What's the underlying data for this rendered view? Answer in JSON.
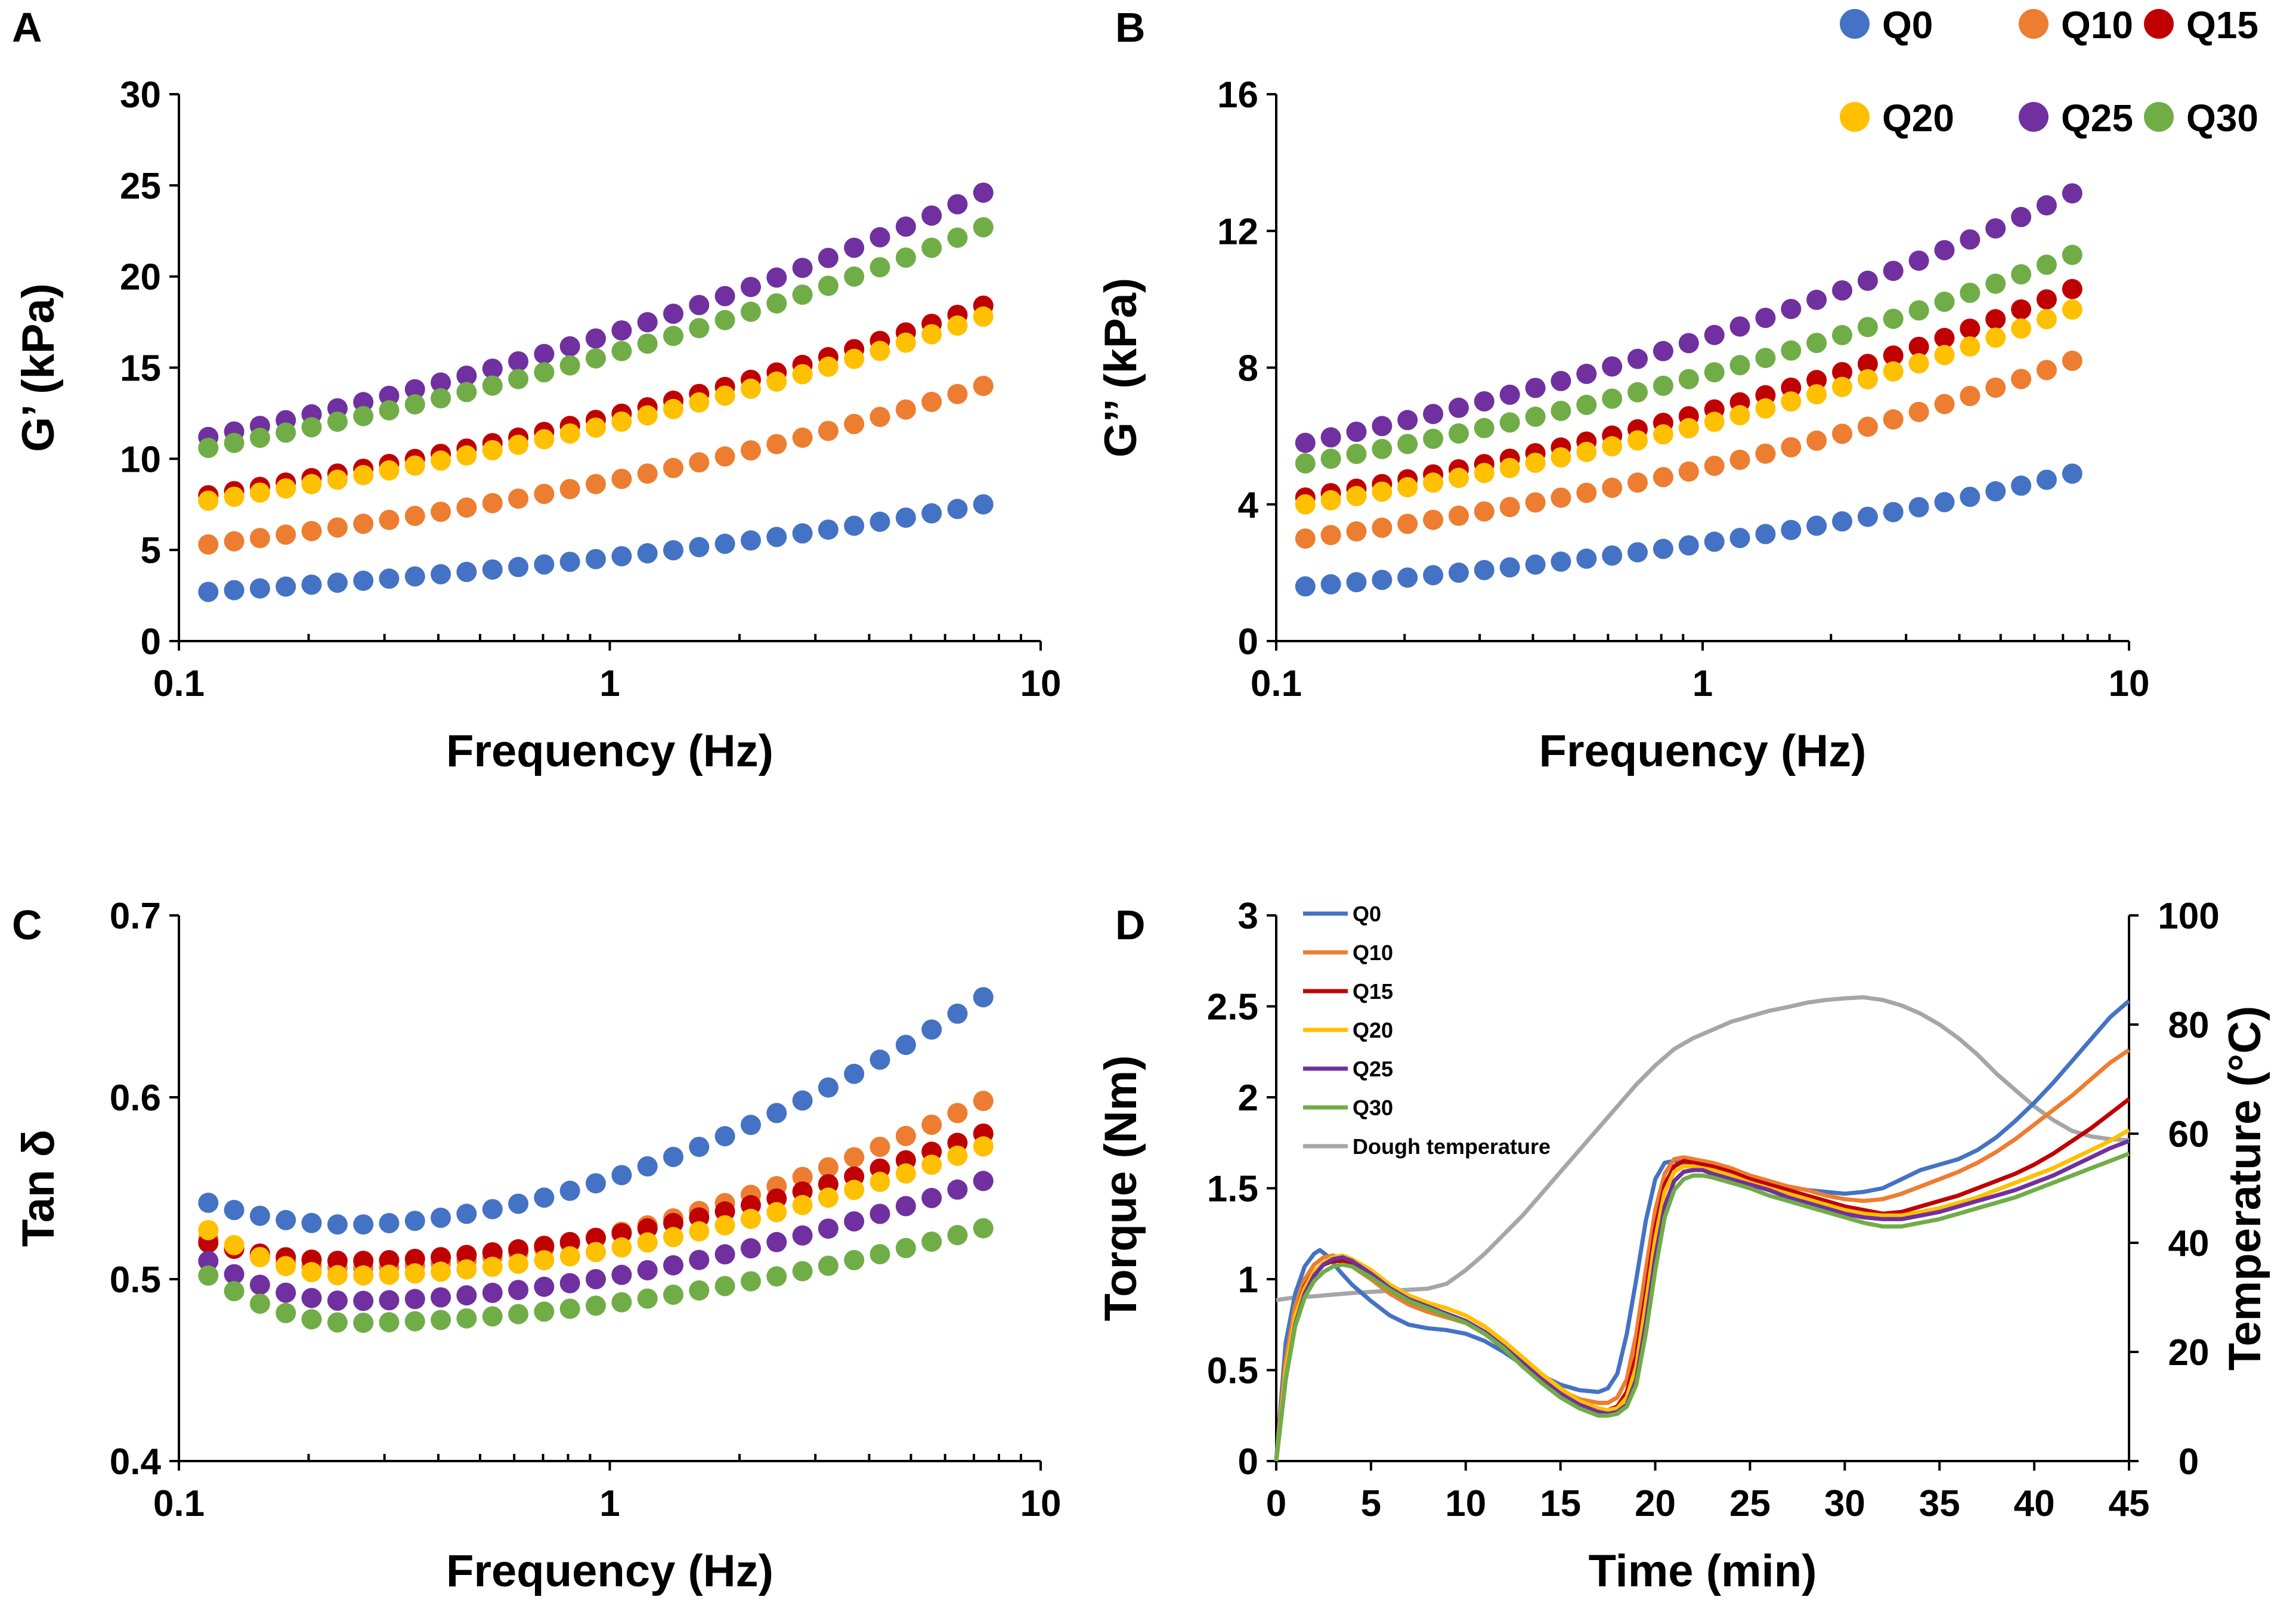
{
  "figure": {
    "top_legend": [
      {
        "name": "Q0",
        "color": "#4472C4"
      },
      {
        "name": "Q10",
        "color": "#ED7D31"
      },
      {
        "name": "Q15",
        "color": "#C00000"
      },
      {
        "name": "Q20",
        "color": "#FFC000"
      },
      {
        "name": "Q25",
        "color": "#7030A0"
      },
      {
        "name": "Q30",
        "color": "#70AD47"
      }
    ]
  },
  "chart_data": [
    {
      "id": "A",
      "panel_label": "A",
      "type": "scatter",
      "xscale": "log",
      "xlim": [
        0.1,
        10
      ],
      "ylim": [
        0,
        30
      ],
      "x_ticks": [
        0.1,
        1,
        10
      ],
      "x_tick_labels": [
        "0.1",
        "1",
        "10"
      ],
      "y_ticks": [
        0,
        5,
        10,
        15,
        20,
        25,
        30
      ],
      "y_tick_labels": [
        "0",
        "5",
        "10",
        "15",
        "20",
        "25",
        "30"
      ],
      "xlabel": "Frequency (Hz)",
      "ylabel": "G’ (kPa)",
      "x_range": [
        0.117,
        7.36
      ],
      "n_points": 31,
      "series": [
        {
          "name": "Q0",
          "color": "#4472C4",
          "start": 2.7,
          "end": 7.5
        },
        {
          "name": "Q10",
          "color": "#ED7D31",
          "start": 5.3,
          "end": 14.0
        },
        {
          "name": "Q15",
          "color": "#C00000",
          "start": 8.0,
          "end": 18.4
        },
        {
          "name": "Q20",
          "color": "#FFC000",
          "start": 7.7,
          "end": 17.8
        },
        {
          "name": "Q25",
          "color": "#7030A0",
          "start": 11.2,
          "end": 24.6
        },
        {
          "name": "Q30",
          "color": "#70AD47",
          "start": 10.6,
          "end": 22.7
        }
      ]
    },
    {
      "id": "B",
      "panel_label": "B",
      "type": "scatter",
      "xscale": "log",
      "xlim": [
        0.1,
        10
      ],
      "ylim": [
        0,
        16
      ],
      "x_ticks": [
        0.1,
        1,
        10
      ],
      "x_tick_labels": [
        "0.1",
        "1",
        "10"
      ],
      "y_ticks": [
        0,
        4,
        8,
        12,
        16
      ],
      "y_tick_labels": [
        "0",
        "4",
        "8",
        "12",
        "16"
      ],
      "xlabel": "Frequency (Hz)",
      "ylabel": "G’’ (kPa)",
      "x_range": [
        0.117,
        7.36
      ],
      "n_points": 31,
      "series": [
        {
          "name": "Q0",
          "color": "#4472C4",
          "start": 1.6,
          "end": 4.9
        },
        {
          "name": "Q10",
          "color": "#ED7D31",
          "start": 3.0,
          "end": 8.2
        },
        {
          "name": "Q15",
          "color": "#C00000",
          "start": 4.2,
          "end": 10.3
        },
        {
          "name": "Q20",
          "color": "#FFC000",
          "start": 4.0,
          "end": 9.7
        },
        {
          "name": "Q25",
          "color": "#7030A0",
          "start": 5.8,
          "end": 13.1
        },
        {
          "name": "Q30",
          "color": "#70AD47",
          "start": 5.2,
          "end": 11.3
        }
      ]
    },
    {
      "id": "C",
      "panel_label": "C",
      "type": "scatter",
      "xscale": "log",
      "xlim": [
        0.1,
        10
      ],
      "ylim": [
        0.4,
        0.7
      ],
      "x_ticks": [
        0.1,
        1,
        10
      ],
      "x_tick_labels": [
        "0.1",
        "1",
        "10"
      ],
      "y_ticks": [
        0.4,
        0.5,
        0.6,
        0.7
      ],
      "y_tick_labels": [
        "0.4",
        "0.5",
        "0.6",
        "0.7"
      ],
      "xlabel": "Frequency (Hz)",
      "ylabel": "Tan δ",
      "x_range": [
        0.117,
        7.36
      ],
      "n_points": 31,
      "series": [
        {
          "name": "Q0",
          "color": "#4472C4",
          "start": 0.542,
          "min": 0.53,
          "end": 0.655
        },
        {
          "name": "Q10",
          "color": "#ED7D31",
          "start": 0.522,
          "min": 0.506,
          "end": 0.598
        },
        {
          "name": "Q15",
          "color": "#C00000",
          "start": 0.52,
          "min": 0.51,
          "end": 0.58
        },
        {
          "name": "Q20",
          "color": "#FFC000",
          "start": 0.527,
          "min": 0.502,
          "end": 0.573
        },
        {
          "name": "Q25",
          "color": "#7030A0",
          "start": 0.51,
          "min": 0.488,
          "end": 0.554
        },
        {
          "name": "Q30",
          "color": "#70AD47",
          "start": 0.502,
          "min": 0.476,
          "end": 0.528
        }
      ]
    },
    {
      "id": "D",
      "panel_label": "D",
      "type": "line",
      "xlim": [
        0,
        45
      ],
      "ylim": [
        0,
        3
      ],
      "y2lim": [
        0,
        100
      ],
      "x_ticks": [
        0,
        5,
        10,
        15,
        20,
        25,
        30,
        35,
        40,
        45
      ],
      "x_tick_labels": [
        "0",
        "5",
        "10",
        "15",
        "20",
        "25",
        "30",
        "35",
        "40",
        "45"
      ],
      "y_ticks": [
        0,
        0.5,
        1,
        1.5,
        2,
        2.5,
        3
      ],
      "y_tick_labels": [
        "0",
        "0.5",
        "1",
        "1.5",
        "2",
        "2.5",
        "3"
      ],
      "y2_ticks": [
        0,
        20,
        40,
        60,
        80,
        100
      ],
      "y2_tick_labels": [
        "0",
        "20",
        "40",
        "60",
        "80",
        "100"
      ],
      "xlabel": "Time (min)",
      "ylabel": "Torque (Nm)",
      "y2label": "Temperature (°C)",
      "series": [
        {
          "name": "Q0",
          "color": "#4472C4",
          "axis": "left",
          "x": [
            0,
            0.5,
            1,
            1.5,
            2,
            2.3,
            2.8,
            3.3,
            4,
            5,
            6,
            7,
            8,
            9,
            10,
            11,
            12,
            13,
            14,
            15,
            16,
            17,
            17.5,
            18,
            18.5,
            19,
            19.5,
            20,
            20.5,
            21,
            22,
            23,
            24,
            25,
            26,
            27,
            28,
            29,
            30,
            31,
            32,
            33,
            34,
            35,
            36,
            37,
            38,
            39,
            40,
            41,
            42,
            43,
            44,
            45
          ],
          "y": [
            0,
            0.65,
            0.92,
            1.07,
            1.14,
            1.16,
            1.12,
            1.05,
            0.97,
            0.88,
            0.8,
            0.75,
            0.73,
            0.72,
            0.7,
            0.66,
            0.6,
            0.53,
            0.47,
            0.42,
            0.39,
            0.38,
            0.4,
            0.48,
            0.7,
            1.0,
            1.32,
            1.55,
            1.64,
            1.65,
            1.63,
            1.61,
            1.58,
            1.55,
            1.53,
            1.51,
            1.49,
            1.48,
            1.47,
            1.48,
            1.5,
            1.55,
            1.6,
            1.63,
            1.66,
            1.71,
            1.78,
            1.87,
            1.97,
            2.08,
            2.2,
            2.32,
            2.44,
            2.53
          ]
        },
        {
          "name": "Q10",
          "color": "#ED7D31",
          "axis": "left",
          "x": [
            0,
            0.5,
            1,
            1.5,
            2,
            2.5,
            3,
            3.5,
            4,
            5,
            6,
            7,
            8,
            9,
            10,
            11,
            12,
            13,
            14,
            15,
            16,
            17,
            17.5,
            18,
            18.5,
            19,
            19.5,
            20,
            20.5,
            21,
            21.5,
            22,
            23,
            24,
            25,
            26,
            27,
            28,
            29,
            30,
            31,
            32,
            33,
            34,
            35,
            36,
            37,
            38,
            39,
            40,
            41,
            42,
            43,
            44,
            45
          ],
          "y": [
            0,
            0.55,
            0.85,
            1.0,
            1.08,
            1.12,
            1.13,
            1.11,
            1.07,
            1.0,
            0.92,
            0.86,
            0.82,
            0.79,
            0.76,
            0.7,
            0.62,
            0.54,
            0.46,
            0.39,
            0.34,
            0.32,
            0.32,
            0.35,
            0.45,
            0.7,
            1.05,
            1.38,
            1.58,
            1.66,
            1.67,
            1.66,
            1.64,
            1.61,
            1.57,
            1.54,
            1.51,
            1.49,
            1.46,
            1.44,
            1.43,
            1.44,
            1.47,
            1.51,
            1.55,
            1.59,
            1.64,
            1.7,
            1.77,
            1.85,
            1.93,
            2.01,
            2.1,
            2.19,
            2.26
          ]
        },
        {
          "name": "Q15",
          "color": "#C00000",
          "axis": "left",
          "x": [
            0,
            0.5,
            1,
            1.5,
            2,
            2.5,
            3,
            3.5,
            4,
            5,
            6,
            7,
            8,
            9,
            10,
            11,
            12,
            13,
            14,
            15,
            16,
            17,
            17.5,
            18,
            18.5,
            19,
            19.5,
            20,
            20.5,
            21,
            21.5,
            22,
            23,
            24,
            25,
            26,
            27,
            28,
            29,
            30,
            31,
            32,
            33,
            34,
            35,
            36,
            37,
            38,
            39,
            40,
            41,
            42,
            43,
            44,
            45
          ],
          "y": [
            0,
            0.5,
            0.8,
            0.96,
            1.04,
            1.08,
            1.1,
            1.1,
            1.08,
            1.02,
            0.94,
            0.88,
            0.84,
            0.8,
            0.76,
            0.7,
            0.62,
            0.53,
            0.45,
            0.37,
            0.31,
            0.28,
            0.28,
            0.3,
            0.38,
            0.58,
            0.92,
            1.28,
            1.52,
            1.62,
            1.65,
            1.64,
            1.62,
            1.59,
            1.55,
            1.52,
            1.49,
            1.46,
            1.43,
            1.4,
            1.38,
            1.36,
            1.37,
            1.4,
            1.43,
            1.46,
            1.5,
            1.54,
            1.58,
            1.63,
            1.69,
            1.76,
            1.83,
            1.91,
            1.99
          ]
        },
        {
          "name": "Q20",
          "color": "#FFC000",
          "axis": "left",
          "x": [
            0,
            0.5,
            1,
            1.5,
            2,
            2.5,
            3,
            3.5,
            4,
            5,
            6,
            7,
            8,
            9,
            10,
            11,
            12,
            13,
            14,
            15,
            16,
            17,
            17.5,
            18,
            18.5,
            19,
            19.5,
            20,
            20.5,
            21,
            21.5,
            22,
            23,
            24,
            25,
            26,
            27,
            28,
            29,
            30,
            31,
            32,
            33,
            34,
            35,
            36,
            37,
            38,
            39,
            40,
            41,
            42,
            43,
            44,
            45
          ],
          "y": [
            0,
            0.5,
            0.8,
            0.95,
            1.04,
            1.09,
            1.12,
            1.13,
            1.11,
            1.05,
            0.97,
            0.91,
            0.87,
            0.84,
            0.8,
            0.74,
            0.66,
            0.57,
            0.48,
            0.4,
            0.33,
            0.29,
            0.28,
            0.29,
            0.35,
            0.52,
            0.86,
            1.22,
            1.48,
            1.59,
            1.62,
            1.62,
            1.6,
            1.57,
            1.53,
            1.5,
            1.47,
            1.44,
            1.41,
            1.38,
            1.36,
            1.35,
            1.35,
            1.37,
            1.39,
            1.42,
            1.45,
            1.49,
            1.53,
            1.57,
            1.61,
            1.66,
            1.71,
            1.76,
            1.82
          ]
        },
        {
          "name": "Q25",
          "color": "#7030A0",
          "axis": "left",
          "x": [
            0,
            0.5,
            1,
            1.5,
            2,
            2.5,
            3,
            3.5,
            4,
            5,
            6,
            7,
            8,
            9,
            10,
            11,
            12,
            13,
            14,
            15,
            16,
            17,
            17.5,
            18,
            18.5,
            19,
            19.5,
            20,
            20.5,
            21,
            21.5,
            22,
            22.5,
            23,
            24,
            25,
            26,
            27,
            28,
            29,
            30,
            31,
            32,
            33,
            34,
            35,
            36,
            37,
            38,
            39,
            40,
            41,
            42,
            43,
            44,
            45
          ],
          "y": [
            0,
            0.45,
            0.75,
            0.92,
            1.02,
            1.08,
            1.11,
            1.12,
            1.1,
            1.03,
            0.95,
            0.89,
            0.85,
            0.81,
            0.77,
            0.71,
            0.63,
            0.54,
            0.45,
            0.37,
            0.31,
            0.27,
            0.26,
            0.27,
            0.31,
            0.45,
            0.76,
            1.12,
            1.4,
            1.54,
            1.59,
            1.6,
            1.6,
            1.58,
            1.55,
            1.52,
            1.49,
            1.45,
            1.42,
            1.39,
            1.36,
            1.34,
            1.33,
            1.33,
            1.35,
            1.37,
            1.4,
            1.43,
            1.46,
            1.49,
            1.53,
            1.57,
            1.62,
            1.67,
            1.72,
            1.76
          ]
        },
        {
          "name": "Q30",
          "color": "#70AD47",
          "axis": "left",
          "x": [
            0,
            0.5,
            1,
            1.5,
            2,
            2.5,
            3,
            3.5,
            4,
            5,
            6,
            7,
            8,
            9,
            10,
            11,
            12,
            13,
            14,
            15,
            16,
            17,
            17.5,
            18,
            18.5,
            19,
            19.5,
            20,
            20.5,
            21,
            21.5,
            22,
            22.5,
            23,
            24,
            25,
            26,
            27,
            28,
            29,
            30,
            31,
            32,
            33,
            34,
            35,
            36,
            37,
            38,
            39,
            40,
            41,
            42,
            43,
            44,
            45
          ],
          "y": [
            0,
            0.45,
            0.74,
            0.9,
            0.99,
            1.04,
            1.07,
            1.08,
            1.07,
            1.01,
            0.94,
            0.88,
            0.84,
            0.8,
            0.76,
            0.7,
            0.62,
            0.52,
            0.43,
            0.35,
            0.29,
            0.25,
            0.25,
            0.26,
            0.3,
            0.42,
            0.7,
            1.05,
            1.34,
            1.49,
            1.55,
            1.57,
            1.57,
            1.56,
            1.53,
            1.5,
            1.46,
            1.43,
            1.4,
            1.37,
            1.34,
            1.31,
            1.29,
            1.29,
            1.31,
            1.33,
            1.36,
            1.39,
            1.42,
            1.45,
            1.49,
            1.53,
            1.57,
            1.61,
            1.65,
            1.69
          ]
        },
        {
          "name": "Dough temperature",
          "color": "#A6A6A6",
          "axis": "right",
          "x": [
            0,
            1,
            2,
            3,
            4,
            5,
            6,
            7,
            8,
            9,
            10,
            11,
            12,
            13,
            14,
            15,
            16,
            17,
            18,
            19,
            20,
            21,
            22,
            23,
            24,
            25,
            26,
            27,
            28,
            29,
            30,
            31,
            32,
            33,
            34,
            35,
            36,
            37,
            38,
            39,
            40,
            41,
            42,
            43,
            44,
            45
          ],
          "y": [
            29.5,
            30.0,
            30.2,
            30.5,
            30.8,
            31.0,
            31.2,
            31.4,
            31.6,
            32.5,
            35.0,
            38.0,
            41.5,
            45.0,
            49.0,
            53.0,
            57.0,
            61.0,
            65.0,
            69.0,
            72.5,
            75.5,
            77.5,
            79.0,
            80.5,
            81.5,
            82.5,
            83.2,
            84.0,
            84.5,
            84.8,
            85.0,
            84.5,
            83.5,
            82.0,
            80.0,
            77.5,
            74.5,
            71.0,
            68.0,
            65.0,
            62.5,
            60.5,
            59.5,
            59.0,
            58.8
          ]
        }
      ]
    }
  ]
}
